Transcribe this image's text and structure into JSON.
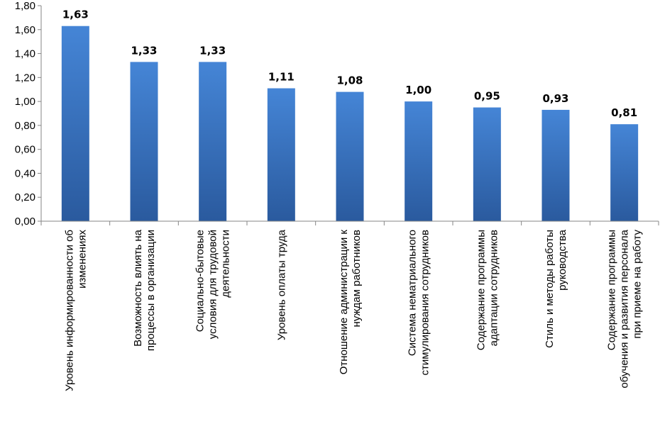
{
  "chart_data": {
    "type": "bar",
    "title": "",
    "xlabel": "",
    "ylabel": "",
    "ylim": [
      0,
      1.8
    ],
    "yticks": [
      "0,00",
      "0,20",
      "0,40",
      "0,60",
      "0,80",
      "1,00",
      "1,20",
      "1,40",
      "1,60",
      "1,80"
    ],
    "grid": false,
    "legend": "none",
    "bar_color_top": "#4585d6",
    "bar_color_bottom": "#2a5a9e",
    "categories": [
      [
        "Уровень информированности об",
        "изменениях"
      ],
      [
        "Возможность влиять на",
        "процессы в организации"
      ],
      [
        "Социально-бытовые",
        "условия для трудовой",
        "деятельности"
      ],
      [
        "Уровень оплаты труда"
      ],
      [
        "Отношение администрации к",
        "нуждам работников"
      ],
      [
        "Система нематриального",
        "стимулирования сотрудников"
      ],
      [
        "Содержание программы",
        "адаптации сотрудников"
      ],
      [
        "Стиль и методы работы",
        "руководства"
      ],
      [
        "Содержание программы",
        "обучения и развития персонала",
        "при приеме на работу"
      ]
    ],
    "values": [
      1.63,
      1.33,
      1.33,
      1.11,
      1.08,
      1.0,
      0.95,
      0.93,
      0.81
    ],
    "value_labels": [
      "1,63",
      "1,33",
      "1,33",
      "1,11",
      "1,08",
      "1,00",
      "0,95",
      "0,93",
      "0,81"
    ]
  }
}
